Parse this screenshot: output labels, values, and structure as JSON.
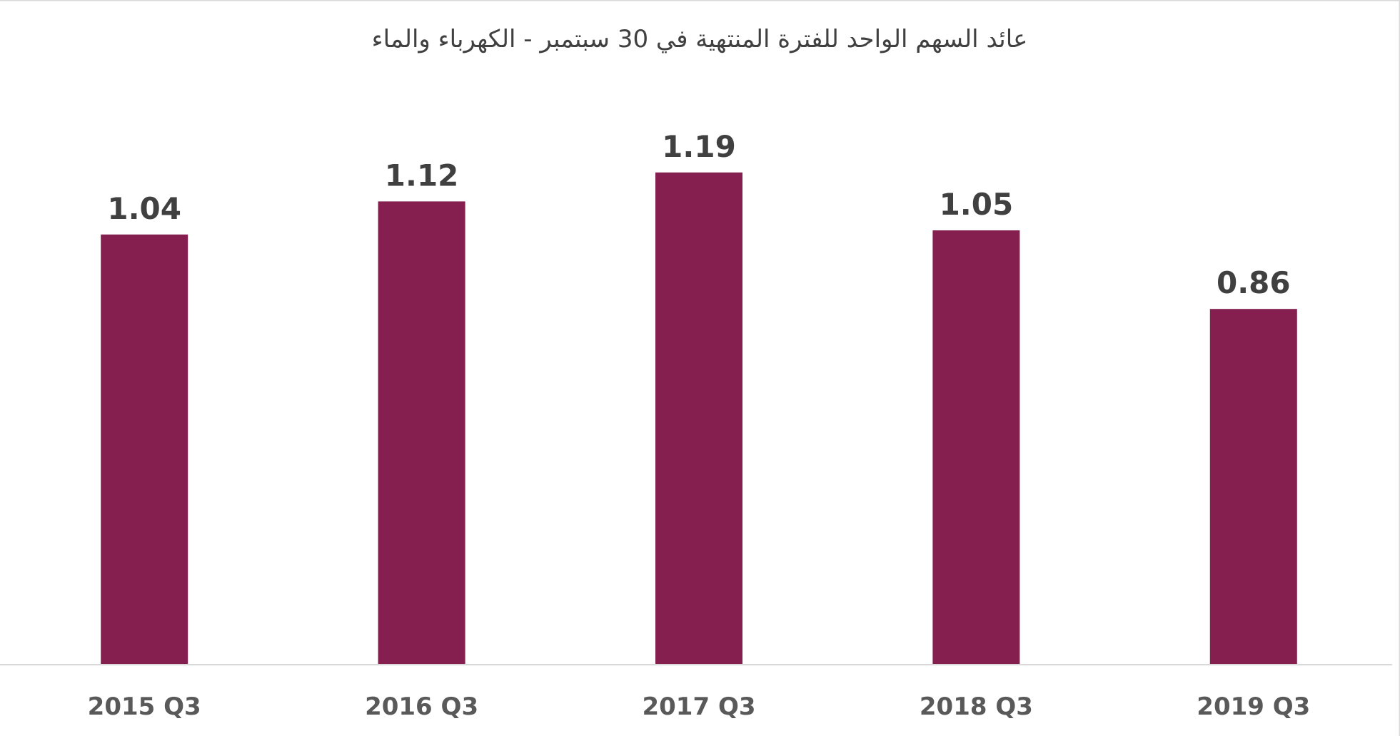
{
  "chart_data": {
    "type": "bar",
    "title": "عائد السهم الواحد للفترة المنتهية في 30 سبتمبر - الكهرباء والماء",
    "categories": [
      "2015 Q3",
      "2016 Q3",
      "2017 Q3",
      "2018 Q3",
      "2019 Q3"
    ],
    "values": [
      1.04,
      1.12,
      1.19,
      1.05,
      0.86
    ],
    "data_labels": [
      "1.04",
      "1.12",
      "1.19",
      "1.05",
      "0.86"
    ],
    "xlabel": "",
    "ylabel": "",
    "ylim": [
      0,
      1.4
    ],
    "grid": false,
    "legend": "none",
    "bar_color": "#841F4F",
    "text_color": "#404040",
    "axis_color": "#D9D9D9"
  }
}
